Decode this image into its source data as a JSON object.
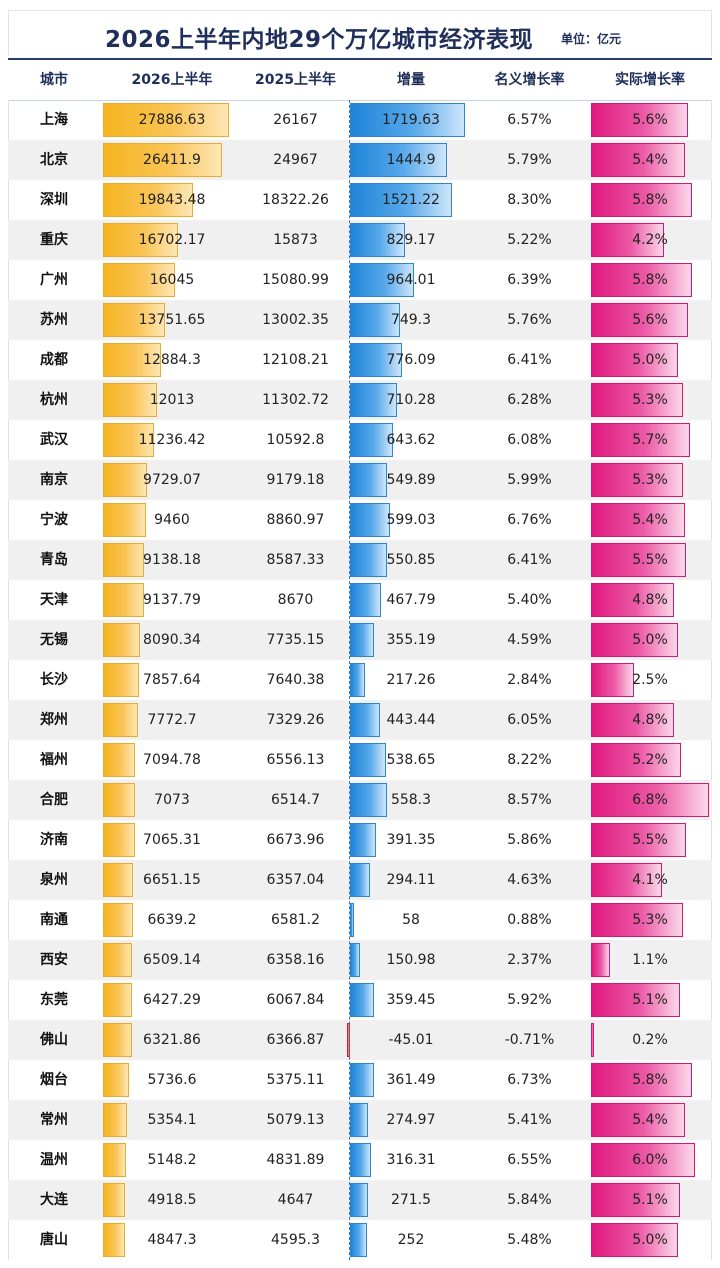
{
  "title": "2026上半年内地29个万亿城市经济表现",
  "unit": "单位：亿元",
  "colors": {
    "gold": "#f6b41f",
    "blue": "#1f84d8",
    "pink": "#e0197f",
    "negative": "#e33b3b",
    "header_text": "#1f2e5a"
  },
  "chart_data": {
    "type": "table",
    "title": "2026上半年内地29个万亿城市经济表现",
    "columns": [
      "城市",
      "2026上半年",
      "2025上半年",
      "增量",
      "名义增长率",
      "实际增长率"
    ],
    "rows": [
      {
        "city": "上海",
        "h1_2026": "27886.63",
        "h1_2025": "26167",
        "increase": "1719.63",
        "nominal": "6.57%",
        "real": "5.6%"
      },
      {
        "city": "北京",
        "h1_2026": "26411.9",
        "h1_2025": "24967",
        "increase": "1444.9",
        "nominal": "5.79%",
        "real": "5.4%"
      },
      {
        "city": "深圳",
        "h1_2026": "19843.48",
        "h1_2025": "18322.26",
        "increase": "1521.22",
        "nominal": "8.30%",
        "real": "5.8%"
      },
      {
        "city": "重庆",
        "h1_2026": "16702.17",
        "h1_2025": "15873",
        "increase": "829.17",
        "nominal": "5.22%",
        "real": "4.2%"
      },
      {
        "city": "广州",
        "h1_2026": "16045",
        "h1_2025": "15080.99",
        "increase": "964.01",
        "nominal": "6.39%",
        "real": "5.8%"
      },
      {
        "city": "苏州",
        "h1_2026": "13751.65",
        "h1_2025": "13002.35",
        "increase": "749.3",
        "nominal": "5.76%",
        "real": "5.6%"
      },
      {
        "city": "成都",
        "h1_2026": "12884.3",
        "h1_2025": "12108.21",
        "increase": "776.09",
        "nominal": "6.41%",
        "real": "5.0%"
      },
      {
        "city": "杭州",
        "h1_2026": "12013",
        "h1_2025": "11302.72",
        "increase": "710.28",
        "nominal": "6.28%",
        "real": "5.3%"
      },
      {
        "city": "武汉",
        "h1_2026": "11236.42",
        "h1_2025": "10592.8",
        "increase": "643.62",
        "nominal": "6.08%",
        "real": "5.7%"
      },
      {
        "city": "南京",
        "h1_2026": "9729.07",
        "h1_2025": "9179.18",
        "increase": "549.89",
        "nominal": "5.99%",
        "real": "5.3%"
      },
      {
        "city": "宁波",
        "h1_2026": "9460",
        "h1_2025": "8860.97",
        "increase": "599.03",
        "nominal": "6.76%",
        "real": "5.4%"
      },
      {
        "city": "青岛",
        "h1_2026": "9138.18",
        "h1_2025": "8587.33",
        "increase": "550.85",
        "nominal": "6.41%",
        "real": "5.5%"
      },
      {
        "city": "天津",
        "h1_2026": "9137.79",
        "h1_2025": "8670",
        "increase": "467.79",
        "nominal": "5.40%",
        "real": "4.8%"
      },
      {
        "city": "无锡",
        "h1_2026": "8090.34",
        "h1_2025": "7735.15",
        "increase": "355.19",
        "nominal": "4.59%",
        "real": "5.0%"
      },
      {
        "city": "长沙",
        "h1_2026": "7857.64",
        "h1_2025": "7640.38",
        "increase": "217.26",
        "nominal": "2.84%",
        "real": "2.5%"
      },
      {
        "city": "郑州",
        "h1_2026": "7772.7",
        "h1_2025": "7329.26",
        "increase": "443.44",
        "nominal": "6.05%",
        "real": "4.8%"
      },
      {
        "city": "福州",
        "h1_2026": "7094.78",
        "h1_2025": "6556.13",
        "increase": "538.65",
        "nominal": "8.22%",
        "real": "5.2%"
      },
      {
        "city": "合肥",
        "h1_2026": "7073",
        "h1_2025": "6514.7",
        "increase": "558.3",
        "nominal": "8.57%",
        "real": "6.8%"
      },
      {
        "city": "济南",
        "h1_2026": "7065.31",
        "h1_2025": "6673.96",
        "increase": "391.35",
        "nominal": "5.86%",
        "real": "5.5%"
      },
      {
        "city": "泉州",
        "h1_2026": "6651.15",
        "h1_2025": "6357.04",
        "increase": "294.11",
        "nominal": "4.63%",
        "real": "4.1%"
      },
      {
        "city": "南通",
        "h1_2026": "6639.2",
        "h1_2025": "6581.2",
        "increase": "58",
        "nominal": "0.88%",
        "real": "5.3%"
      },
      {
        "city": "西安",
        "h1_2026": "6509.14",
        "h1_2025": "6358.16",
        "increase": "150.98",
        "nominal": "2.37%",
        "real": "1.1%"
      },
      {
        "city": "东莞",
        "h1_2026": "6427.29",
        "h1_2025": "6067.84",
        "increase": "359.45",
        "nominal": "5.92%",
        "real": "5.1%"
      },
      {
        "city": "佛山",
        "h1_2026": "6321.86",
        "h1_2025": "6366.87",
        "increase": "-45.01",
        "nominal": "-0.71%",
        "real": "0.2%"
      },
      {
        "city": "烟台",
        "h1_2026": "5736.6",
        "h1_2025": "5375.11",
        "increase": "361.49",
        "nominal": "6.73%",
        "real": "5.8%"
      },
      {
        "city": "常州",
        "h1_2026": "5354.1",
        "h1_2025": "5079.13",
        "increase": "274.97",
        "nominal": "5.41%",
        "real": "5.4%"
      },
      {
        "city": "温州",
        "h1_2026": "5148.2",
        "h1_2025": "4831.89",
        "increase": "316.31",
        "nominal": "6.55%",
        "real": "6.0%"
      },
      {
        "city": "大连",
        "h1_2026": "4918.5",
        "h1_2025": "4647",
        "increase": "271.5",
        "nominal": "5.84%",
        "real": "5.1%"
      },
      {
        "city": "唐山",
        "h1_2026": "4847.3",
        "h1_2025": "4595.3",
        "increase": "252",
        "nominal": "5.48%",
        "real": "5.0%"
      }
    ]
  }
}
